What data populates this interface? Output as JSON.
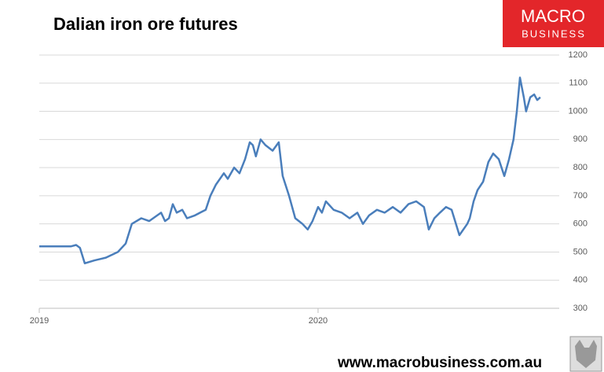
{
  "chart_data": {
    "type": "line",
    "title": "Dalian iron ore futures",
    "x": [
      2019.0,
      2019.056,
      2019.113,
      2019.132,
      2019.146,
      2019.163,
      2019.197,
      2019.239,
      2019.282,
      2019.31,
      2019.332,
      2019.366,
      2019.394,
      2019.437,
      2019.451,
      2019.465,
      2019.479,
      2019.493,
      2019.513,
      2019.53,
      2019.558,
      2019.577,
      2019.597,
      2019.614,
      2019.634,
      2019.662,
      2019.676,
      2019.699,
      2019.718,
      2019.738,
      2019.755,
      2019.766,
      2019.777,
      2019.794,
      2019.811,
      2019.837,
      2019.859,
      2019.873,
      2019.896,
      2019.918,
      2019.944,
      2019.963,
      2019.98,
      2020.0,
      2020.014,
      2020.028,
      2020.056,
      2020.085,
      2020.113,
      2020.141,
      2020.161,
      2020.183,
      2020.211,
      2020.239,
      2020.268,
      2020.296,
      2020.324,
      2020.352,
      2020.38,
      2020.397,
      2020.417,
      2020.437,
      2020.459,
      2020.479,
      2020.507,
      2020.535,
      2020.544,
      2020.558,
      2020.572,
      2020.592,
      2020.611,
      2020.628,
      2020.648,
      2020.668,
      2020.685,
      2020.701,
      2020.713,
      2020.724,
      2020.738,
      2020.746,
      2020.761,
      2020.775,
      2020.786,
      2020.797
    ],
    "series": [
      {
        "name": "Dalian iron ore futures",
        "color": "#4a7ebb",
        "values": [
          520,
          520,
          520,
          525,
          515,
          460,
          470,
          480,
          500,
          530,
          600,
          620,
          610,
          640,
          610,
          620,
          670,
          640,
          650,
          620,
          630,
          640,
          650,
          700,
          740,
          780,
          760,
          800,
          780,
          830,
          890,
          880,
          840,
          900,
          880,
          860,
          890,
          770,
          700,
          620,
          600,
          580,
          610,
          660,
          640,
          680,
          650,
          640,
          620,
          640,
          600,
          630,
          650,
          640,
          660,
          640,
          670,
          680,
          660,
          580,
          620,
          640,
          660,
          650,
          560,
          600,
          620,
          680,
          720,
          750,
          820,
          850,
          830,
          770,
          830,
          900,
          1000,
          1120,
          1050,
          1000,
          1050,
          1060,
          1040,
          1050
        ]
      }
    ],
    "xlim": [
      2019,
      2020.865
    ],
    "xticks": [
      2019,
      2020
    ],
    "ylim": [
      300,
      1200
    ],
    "yticks": [
      300,
      400,
      500,
      600,
      700,
      800,
      900,
      1000,
      1100,
      1200
    ],
    "grid": true
  },
  "logo": {
    "line1": "MACRO",
    "line2": "BUSINESS"
  },
  "footer": "www.macrobusiness.com.au"
}
